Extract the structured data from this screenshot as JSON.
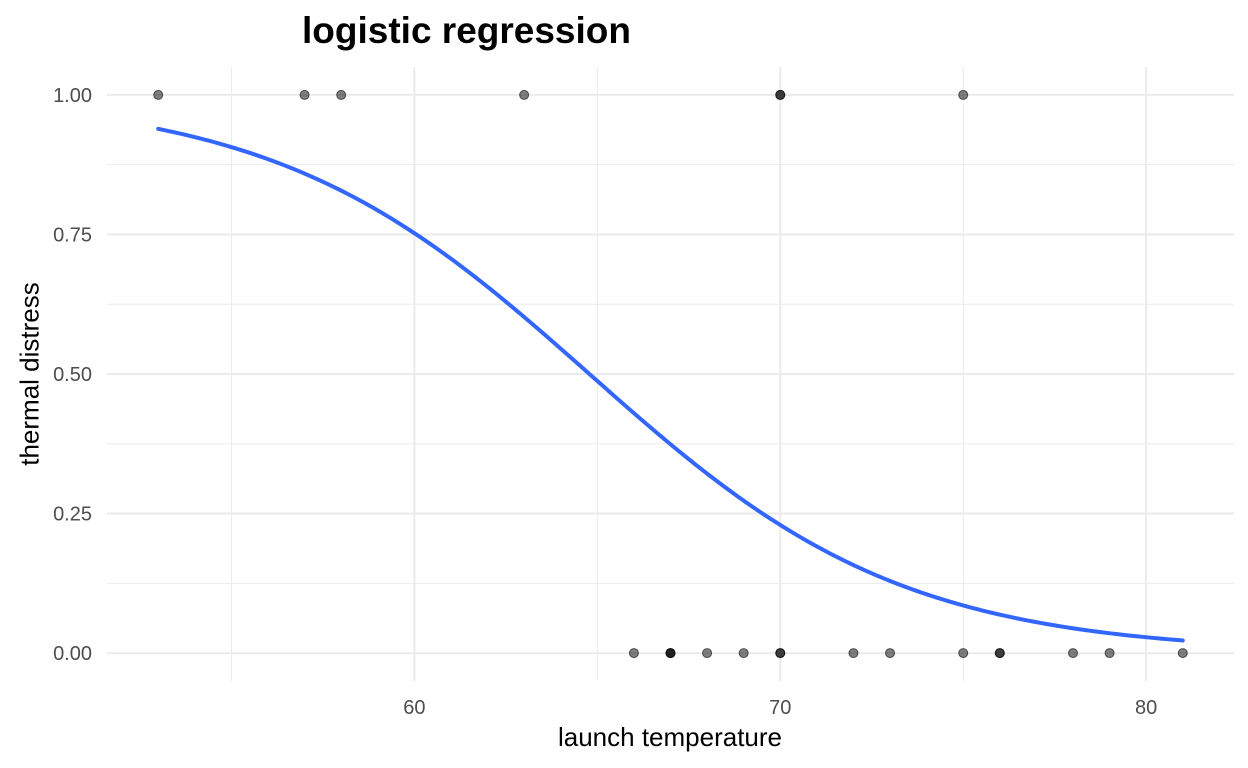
{
  "chart_data": {
    "type": "scatter",
    "title": "logistic regression",
    "xlabel": "launch temperature",
    "ylabel": "thermal distress",
    "xlim": [
      51.6,
      82.4
    ],
    "ylim": [
      -0.05,
      1.05
    ],
    "x_ticks": [
      60,
      70,
      80
    ],
    "x_tick_labels": [
      "60",
      "70",
      "80"
    ],
    "y_ticks": [
      0,
      0.25,
      0.5,
      0.75,
      1
    ],
    "y_tick_labels": [
      "0.00",
      "0.25",
      "0.50",
      "0.75",
      "1.00"
    ],
    "grid": true,
    "points": [
      {
        "x": 53,
        "y": 1
      },
      {
        "x": 57,
        "y": 1
      },
      {
        "x": 58,
        "y": 1
      },
      {
        "x": 63,
        "y": 1
      },
      {
        "x": 66,
        "y": 0
      },
      {
        "x": 67,
        "y": 0
      },
      {
        "x": 67,
        "y": 0
      },
      {
        "x": 67,
        "y": 0
      },
      {
        "x": 68,
        "y": 0
      },
      {
        "x": 69,
        "y": 0
      },
      {
        "x": 70,
        "y": 0
      },
      {
        "x": 70,
        "y": 0
      },
      {
        "x": 70,
        "y": 1
      },
      {
        "x": 70,
        "y": 1
      },
      {
        "x": 72,
        "y": 0
      },
      {
        "x": 73,
        "y": 0
      },
      {
        "x": 75,
        "y": 0
      },
      {
        "x": 75,
        "y": 1
      },
      {
        "x": 76,
        "y": 0
      },
      {
        "x": 76,
        "y": 0
      },
      {
        "x": 78,
        "y": 0
      },
      {
        "x": 79,
        "y": 0
      },
      {
        "x": 81,
        "y": 0
      }
    ],
    "fit_curve": {
      "model": "logistic",
      "intercept": 15.0429,
      "slope": -0.2322,
      "x_range": [
        53,
        81
      ]
    },
    "colors": {
      "points": "#000000",
      "curve": "#3366FF",
      "grid": "#ebebeb"
    }
  }
}
